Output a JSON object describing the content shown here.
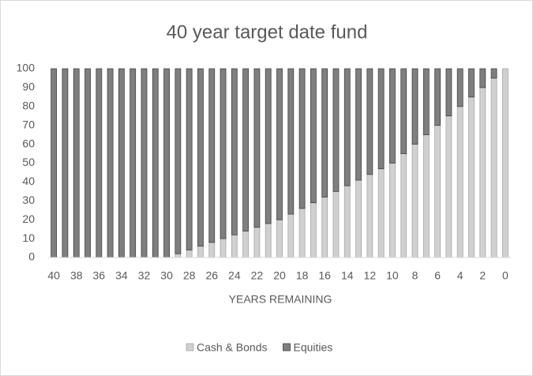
{
  "chart_data": {
    "type": "stacked_bar",
    "title": "40 year target date fund",
    "x_label": "YEARS REMAINING",
    "categories": [
      "40",
      null,
      "38",
      null,
      "36",
      null,
      "34",
      null,
      "32",
      null,
      "30",
      null,
      "28",
      null,
      "26",
      null,
      "24",
      null,
      "22",
      null,
      "20",
      null,
      "18",
      null,
      "16",
      null,
      "14",
      null,
      "12",
      null,
      "10",
      null,
      "8",
      null,
      "6",
      null,
      "4",
      null,
      "2",
      null,
      "0"
    ],
    "series": [
      {
        "name": "Cash & Bonds",
        "color": "#d0d0d0",
        "values": [
          0,
          0,
          0,
          0,
          0,
          0,
          0,
          0,
          0,
          0,
          0,
          2,
          4,
          6,
          8,
          10,
          12,
          14,
          16,
          18,
          20,
          23,
          26,
          29,
          32,
          35,
          38,
          41,
          44,
          47,
          50,
          55,
          60,
          65,
          70,
          75,
          80,
          85,
          90,
          95,
          100
        ]
      },
      {
        "name": "Equities",
        "color": "#7f7f7f",
        "values": [
          100,
          100,
          100,
          100,
          100,
          100,
          100,
          100,
          100,
          100,
          100,
          98,
          96,
          94,
          92,
          90,
          88,
          86,
          84,
          82,
          80,
          77,
          74,
          71,
          68,
          65,
          62,
          59,
          56,
          53,
          50,
          45,
          40,
          35,
          30,
          25,
          20,
          15,
          10,
          5,
          0
        ]
      }
    ],
    "ylim": [
      0,
      100
    ],
    "yticks": [
      0,
      10,
      20,
      30,
      40,
      50,
      60,
      70,
      80,
      90,
      100
    ],
    "grid": false,
    "legend": "bottom"
  }
}
